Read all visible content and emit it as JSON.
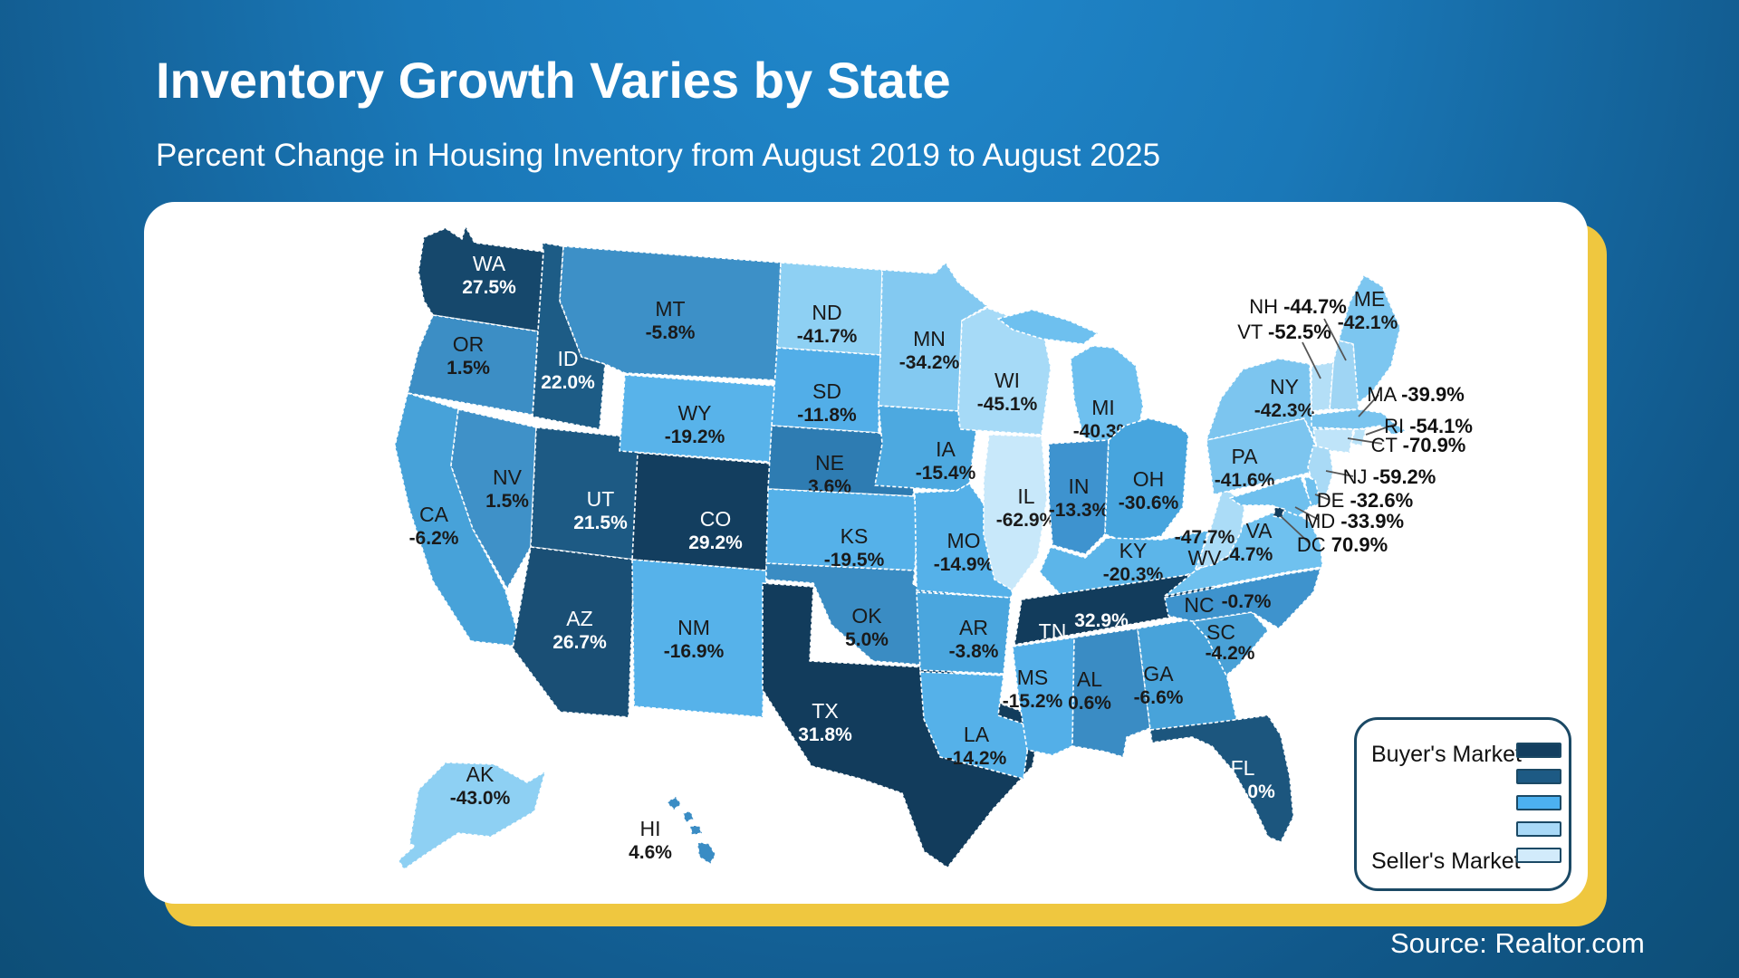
{
  "header": {
    "title": "Inventory Growth Varies by State",
    "subtitle": "Percent Change in Housing Inventory from August 2019 to August 2025"
  },
  "source_label": "Source: Realtor.com",
  "legend": {
    "buyer_label": "Buyer's Market",
    "seller_label": "Seller's Market",
    "swatches": [
      "#133f60",
      "#1d5a84",
      "#4cb1f0",
      "#a9d9f7",
      "#d2ebfb"
    ]
  },
  "colors": {
    "background_top": "#2189cd",
    "background_bottom": "#0d4e77",
    "card_bg": "#ffffff",
    "card_accent": "#efc73f",
    "navy_border": "#1b4965",
    "state_border": "#ffffff",
    "callout_line": "#555555",
    "label_dark": "#111111",
    "label_light": "#ffffff"
  },
  "chart_data": {
    "type": "choropleth",
    "title": "Inventory Growth Varies by State",
    "metric": "Percent change in housing inventory from August 2019 to August 2025",
    "unit": "%",
    "legend_top": "Buyer's Market",
    "legend_bottom": "Seller's Market",
    "states": [
      {
        "abbr": "WA",
        "value": 27.5,
        "fill": "#16486c",
        "text": "white"
      },
      {
        "abbr": "OR",
        "value": 1.5,
        "fill": "#3c8ec5",
        "text": "dark"
      },
      {
        "abbr": "CA",
        "value": -6.2,
        "fill": "#47a2d9",
        "text": "dark"
      },
      {
        "abbr": "NV",
        "value": 1.5,
        "fill": "#3f91c8",
        "text": "dark"
      },
      {
        "abbr": "ID",
        "value": 22.0,
        "fill": "#1d5c86",
        "text": "white"
      },
      {
        "abbr": "UT",
        "value": 21.5,
        "fill": "#1d5a84",
        "text": "white"
      },
      {
        "abbr": "AZ",
        "value": 26.7,
        "fill": "#1a4f75",
        "text": "white"
      },
      {
        "abbr": "MT",
        "value": -5.8,
        "fill": "#3d90c7",
        "text": "dark"
      },
      {
        "abbr": "WY",
        "value": -19.2,
        "fill": "#58b3ea",
        "text": "dark"
      },
      {
        "abbr": "CO",
        "value": 29.2,
        "fill": "#133e5f",
        "text": "white"
      },
      {
        "abbr": "NM",
        "value": -16.9,
        "fill": "#56b2ea",
        "text": "dark"
      },
      {
        "abbr": "ND",
        "value": -41.7,
        "fill": "#8ed0f3",
        "text": "dark"
      },
      {
        "abbr": "SD",
        "value": -11.8,
        "fill": "#52aee8",
        "text": "dark"
      },
      {
        "abbr": "NE",
        "value": 3.6,
        "fill": "#2e7cb2",
        "text": "dark"
      },
      {
        "abbr": "KS",
        "value": -19.5,
        "fill": "#55b1e9",
        "text": "dark"
      },
      {
        "abbr": "OK",
        "value": 5.0,
        "fill": "#3a8cc3",
        "text": "dark"
      },
      {
        "abbr": "TX",
        "value": 31.8,
        "fill": "#123c5c",
        "text": "white"
      },
      {
        "abbr": "MN",
        "value": -34.2,
        "fill": "#83c9f1",
        "text": "dark"
      },
      {
        "abbr": "IA",
        "value": -15.4,
        "fill": "#4da9e0",
        "text": "dark"
      },
      {
        "abbr": "MO",
        "value": -14.9,
        "fill": "#55b1e9",
        "text": "dark"
      },
      {
        "abbr": "AR",
        "value": -3.8,
        "fill": "#4aa6de",
        "text": "dark"
      },
      {
        "abbr": "LA",
        "value": -14.2,
        "fill": "#55b1e9",
        "text": "dark"
      },
      {
        "abbr": "WI",
        "value": -45.1,
        "fill": "#a6daf7",
        "text": "dark"
      },
      {
        "abbr": "IL",
        "value": -62.9,
        "fill": "#c8e8fa",
        "text": "dark"
      },
      {
        "abbr": "MS",
        "value": -15.2,
        "fill": "#53afe8",
        "text": "dark"
      },
      {
        "abbr": "MI",
        "value": -40.3,
        "fill": "#6ec0ef",
        "text": "dark"
      },
      {
        "abbr": "IN",
        "value": -13.3,
        "fill": "#3e93cf",
        "text": "dark"
      },
      {
        "abbr": "OH",
        "value": -30.6,
        "fill": "#47a5de",
        "text": "dark"
      },
      {
        "abbr": "KY",
        "value": -20.3,
        "fill": "#5cb5e9",
        "text": "dark"
      },
      {
        "abbr": "TN",
        "value": 32.9,
        "fill": "#123c5c",
        "text": "white"
      },
      {
        "abbr": "AL",
        "value": 0.6,
        "fill": "#3a8cc4",
        "text": "dark"
      },
      {
        "abbr": "GA",
        "value": -6.6,
        "fill": "#48a3da",
        "text": "dark"
      },
      {
        "abbr": "FL",
        "value": 25.0,
        "fill": "#1c567e",
        "text": "white"
      },
      {
        "abbr": "SC",
        "value": -4.2,
        "fill": "#49a1d7",
        "text": "dark"
      },
      {
        "abbr": "NC",
        "value": -0.7,
        "fill": "#3e93cd",
        "text": "dark"
      },
      {
        "abbr": "VA",
        "value": -34.7,
        "fill": "#6fc1ef",
        "text": "dark"
      },
      {
        "abbr": "WV",
        "value": -47.7,
        "fill": "#abdcf7",
        "text": "dark"
      },
      {
        "abbr": "PA",
        "value": -41.6,
        "fill": "#7cc5ef",
        "text": "dark"
      },
      {
        "abbr": "NY",
        "value": -42.3,
        "fill": "#7cc5ef",
        "text": "dark"
      },
      {
        "abbr": "ME",
        "value": -42.1,
        "fill": "#7cc6f0",
        "text": "dark"
      },
      {
        "abbr": "NH",
        "value": -44.7,
        "fill": "#9fd5f4",
        "text": "dark"
      },
      {
        "abbr": "VT",
        "value": -52.5,
        "fill": "#b4dff7",
        "text": "dark"
      },
      {
        "abbr": "MA",
        "value": -39.9,
        "fill": "#79c4ef",
        "text": "dark"
      },
      {
        "abbr": "RI",
        "value": -54.1,
        "fill": "#b9e2f8",
        "text": "dark"
      },
      {
        "abbr": "CT",
        "value": -70.9,
        "fill": "#bfe4f9",
        "text": "dark"
      },
      {
        "abbr": "NJ",
        "value": -59.2,
        "fill": "#a9daf6",
        "text": "dark"
      },
      {
        "abbr": "DE",
        "value": -32.6,
        "fill": "#6fc0ee",
        "text": "dark"
      },
      {
        "abbr": "MD",
        "value": -33.9,
        "fill": "#6fc0ee",
        "text": "dark"
      },
      {
        "abbr": "DC",
        "value": 70.9,
        "fill": "#123c5c",
        "text": "dark"
      },
      {
        "abbr": "AK",
        "value": -43.0,
        "fill": "#8ed0f3",
        "text": "dark"
      },
      {
        "abbr": "HI",
        "value": 4.6,
        "fill": "#3a8cc4",
        "text": "dark"
      }
    ]
  }
}
